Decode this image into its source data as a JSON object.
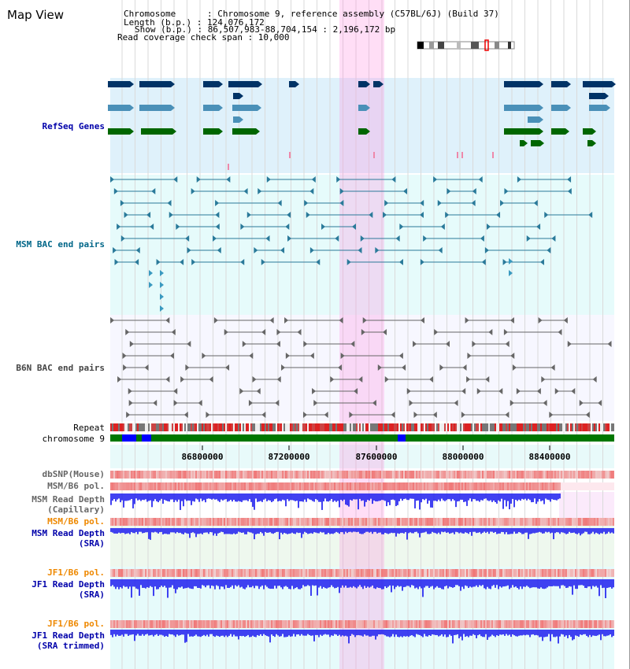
{
  "header": {
    "title": "Map View",
    "info_lines": [
      "Chromosome      : Chromosome 9, reference assembly (C57BL/6J) (Build 37)",
      "Length (b.p.) : 124,076,172",
      "Show (b.p.) : 86,507,983-88,704,154 : 2,196,172 bp",
      "Read coverage check span : 10,000"
    ]
  },
  "tracks": {
    "refseq": "RefSeq Genes",
    "msm_bac": "MSM BAC end pairs",
    "b6n_bac": "B6N BAC end pairs",
    "repeat": "Repeat",
    "chromosome": "chromosome 9",
    "dbsnp": "dbSNP(Mouse)",
    "msm_b6_pol_1": "MSM/B6 pol.",
    "msm_depth_cap_1": "MSM Read Depth",
    "msm_depth_cap_2": "(Capillary)",
    "msm_b6_pol_2": "MSM/B6 pol.",
    "msm_depth_sra_1": "MSM Read Depth",
    "msm_depth_sra_2": "(SRA)",
    "jf1_b6_pol_1": "JF1/B6 pol.",
    "jf1_depth_1": "JF1 Read Depth",
    "jf1_depth_2": "(SRA)",
    "jf1_b6_pol_2": "JF1/B6 pol.",
    "jf1_trim_1": "JF1 Read Depth",
    "jf1_trim_2": "(SRA trimmed)"
  },
  "axis": {
    "ticks": [
      "86800000",
      "87200000",
      "87600000",
      "88000000",
      "88400000"
    ]
  },
  "colors": {
    "refseq_label": "#0000aa",
    "msm_bac_label": "#006688",
    "b6n_bac_label": "#444444",
    "orange_label": "#ee8800",
    "blue_label": "#0000aa",
    "highlight": "#ff88dd",
    "refseq_bg": "#dff1fb",
    "bac_bg": "#e6fbfb",
    "depth_blue": "#2020ee",
    "gene_dark": "#003366",
    "gene_mid": "#4a90b8",
    "gene_green": "#006600"
  }
}
